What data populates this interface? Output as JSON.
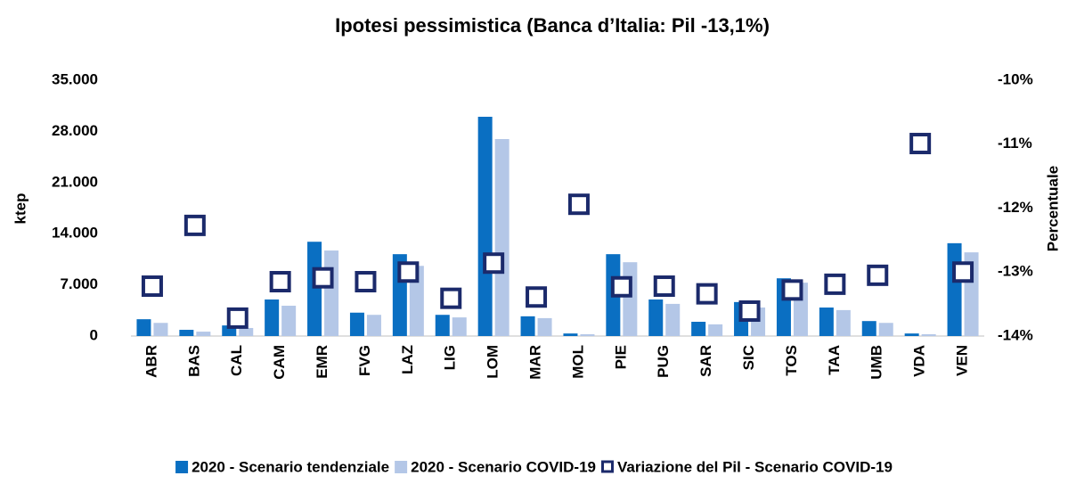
{
  "chart_data": {
    "type": "bar-scatter",
    "title": "Ipotesi pessimistica (Banca d’Italia: Pil -13,1%)",
    "y_label": "ktep",
    "y2_label": "Percentuale",
    "categories": [
      "ABR",
      "BAS",
      "CAL",
      "CAM",
      "EMR",
      "FVG",
      "LAZ",
      "LIG",
      "LOM",
      "MAR",
      "MOL",
      "PIE",
      "PUG",
      "SAR",
      "SIC",
      "TOS",
      "TAA",
      "UMB",
      "VDA",
      "VEN"
    ],
    "series": [
      {
        "name": "2020 - Scenario tendenziale",
        "type": "bar",
        "color": "#0a6fc2",
        "values": [
          2300,
          850,
          1450,
          5000,
          12900,
          3200,
          11200,
          2900,
          30000,
          2700,
          350,
          11200,
          5000,
          1950,
          4650,
          7900,
          3900,
          2050,
          350,
          12700
        ]
      },
      {
        "name": "2020 - Scenario COVID-19",
        "type": "bar",
        "color": "#b4c7e7",
        "values": [
          1800,
          600,
          1100,
          4150,
          11700,
          2900,
          9600,
          2550,
          26950,
          2450,
          250,
          10100,
          4400,
          1600,
          3900,
          7300,
          3550,
          1800,
          250,
          11450
        ]
      },
      {
        "name": "Variazione del Pil - Scenario COVID-19",
        "type": "scatter",
        "axis": "y2",
        "color": "#1b2a6b",
        "values": [
          -13.22,
          -12.27,
          -13.72,
          -13.15,
          -13.09,
          -13.15,
          -13.0,
          -13.41,
          -12.86,
          -13.39,
          -11.94,
          -13.23,
          -13.22,
          -13.34,
          -13.61,
          -13.28,
          -13.19,
          -13.05,
          -10.99,
          -13.0
        ]
      }
    ],
    "ylim": [
      0,
      35000
    ],
    "yticks": [
      0,
      {
        "value": 7000,
        "label": "7.000"
      },
      {
        "value": 14000,
        "label": "14.000"
      },
      {
        "value": 21000,
        "label": "21.000"
      },
      {
        "value": 28000,
        "label": "28.000"
      },
      {
        "value": 35000,
        "label": "35.000"
      }
    ],
    "y2lim": [
      -14,
      -10
    ],
    "y2ticks": [
      {
        "value": -14,
        "label": "-14%"
      },
      {
        "value": -13,
        "label": "-13%"
      },
      {
        "value": -12,
        "label": "-12%"
      },
      {
        "value": -11,
        "label": "-11%"
      },
      {
        "value": -10,
        "label": "-10%"
      }
    ],
    "legend": "bottom"
  }
}
